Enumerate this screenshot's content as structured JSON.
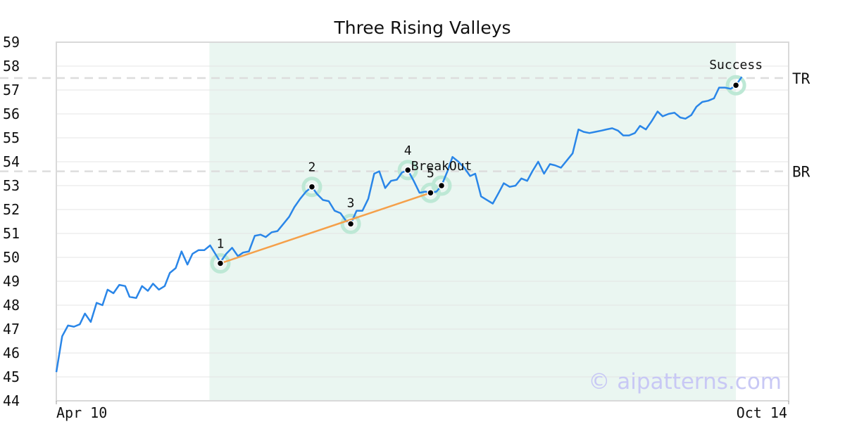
{
  "chart_data": {
    "type": "line",
    "title": "Three Rising Valleys",
    "watermark": "© aipatterns.com",
    "ylim": [
      44,
      59
    ],
    "yticks": [
      44,
      45,
      46,
      47,
      48,
      49,
      50,
      51,
      52,
      53,
      54,
      55,
      56,
      57,
      58,
      59
    ],
    "xlim": [
      0,
      1
    ],
    "xtick_labels": [
      {
        "x": 0.0,
        "label": "Apr 10"
      },
      {
        "x": 1.0,
        "label": "Oct 14"
      }
    ],
    "grid": true,
    "colors": {
      "price_line": "#2a86e8",
      "trend_line": "#f5a04a",
      "highlight_fill": "#eaf6f1",
      "marker_halo": "#bde8d5",
      "reference_line": "#dddddd",
      "watermark": "#c8c8f5"
    },
    "highlight_region": {
      "x_start": 0.209,
      "x_end": 0.928
    },
    "price_series": [
      [
        0.0,
        45.2
      ],
      [
        0.008,
        46.7
      ],
      [
        0.016,
        47.15
      ],
      [
        0.024,
        47.1
      ],
      [
        0.032,
        47.2
      ],
      [
        0.039,
        47.65
      ],
      [
        0.047,
        47.3
      ],
      [
        0.055,
        48.1
      ],
      [
        0.063,
        48.0
      ],
      [
        0.07,
        48.65
      ],
      [
        0.078,
        48.5
      ],
      [
        0.086,
        48.85
      ],
      [
        0.094,
        48.8
      ],
      [
        0.1,
        48.35
      ],
      [
        0.109,
        48.3
      ],
      [
        0.117,
        48.8
      ],
      [
        0.125,
        48.6
      ],
      [
        0.132,
        48.9
      ],
      [
        0.14,
        48.65
      ],
      [
        0.148,
        48.8
      ],
      [
        0.155,
        49.35
      ],
      [
        0.163,
        49.55
      ],
      [
        0.171,
        50.25
      ],
      [
        0.179,
        49.7
      ],
      [
        0.186,
        50.15
      ],
      [
        0.194,
        50.3
      ],
      [
        0.202,
        50.3
      ],
      [
        0.21,
        50.5
      ],
      [
        0.217,
        50.15
      ],
      [
        0.224,
        49.8
      ],
      [
        0.232,
        50.15
      ],
      [
        0.24,
        50.4
      ],
      [
        0.248,
        50.05
      ],
      [
        0.255,
        50.2
      ],
      [
        0.263,
        50.25
      ],
      [
        0.271,
        50.9
      ],
      [
        0.279,
        50.95
      ],
      [
        0.286,
        50.85
      ],
      [
        0.294,
        51.05
      ],
      [
        0.302,
        51.1
      ],
      [
        0.31,
        51.4
      ],
      [
        0.318,
        51.7
      ],
      [
        0.325,
        52.1
      ],
      [
        0.333,
        52.45
      ],
      [
        0.341,
        52.75
      ],
      [
        0.349,
        52.95
      ],
      [
        0.356,
        52.65
      ],
      [
        0.364,
        52.4
      ],
      [
        0.372,
        52.35
      ],
      [
        0.38,
        51.95
      ],
      [
        0.388,
        51.85
      ],
      [
        0.395,
        51.55
      ],
      [
        0.402,
        51.4
      ],
      [
        0.41,
        51.95
      ],
      [
        0.418,
        51.95
      ],
      [
        0.426,
        52.45
      ],
      [
        0.434,
        53.5
      ],
      [
        0.441,
        53.6
      ],
      [
        0.449,
        52.9
      ],
      [
        0.457,
        53.2
      ],
      [
        0.465,
        53.25
      ],
      [
        0.472,
        53.55
      ],
      [
        0.48,
        53.65
      ],
      [
        0.488,
        53.2
      ],
      [
        0.496,
        52.7
      ],
      [
        0.504,
        52.75
      ],
      [
        0.511,
        52.7
      ],
      [
        0.519,
        52.75
      ],
      [
        0.526,
        53.0
      ],
      [
        0.534,
        53.6
      ],
      [
        0.541,
        54.2
      ],
      [
        0.549,
        54.0
      ],
      [
        0.557,
        53.75
      ],
      [
        0.565,
        53.4
      ],
      [
        0.572,
        53.5
      ],
      [
        0.58,
        52.55
      ],
      [
        0.588,
        52.4
      ],
      [
        0.596,
        52.25
      ],
      [
        0.604,
        52.7
      ],
      [
        0.611,
        53.1
      ],
      [
        0.619,
        52.95
      ],
      [
        0.627,
        53.0
      ],
      [
        0.635,
        53.3
      ],
      [
        0.643,
        53.2
      ],
      [
        0.65,
        53.6
      ],
      [
        0.658,
        54.0
      ],
      [
        0.666,
        53.5
      ],
      [
        0.674,
        53.9
      ],
      [
        0.681,
        53.85
      ],
      [
        0.689,
        53.75
      ],
      [
        0.697,
        54.05
      ],
      [
        0.705,
        54.35
      ],
      [
        0.713,
        55.35
      ],
      [
        0.72,
        55.25
      ],
      [
        0.728,
        55.2
      ],
      [
        0.736,
        55.25
      ],
      [
        0.744,
        55.3
      ],
      [
        0.751,
        55.35
      ],
      [
        0.759,
        55.4
      ],
      [
        0.767,
        55.3
      ],
      [
        0.774,
        55.1
      ],
      [
        0.782,
        55.1
      ],
      [
        0.79,
        55.2
      ],
      [
        0.797,
        55.5
      ],
      [
        0.805,
        55.35
      ],
      [
        0.813,
        55.7
      ],
      [
        0.821,
        56.1
      ],
      [
        0.828,
        55.9
      ],
      [
        0.836,
        56.0
      ],
      [
        0.844,
        56.05
      ],
      [
        0.852,
        55.85
      ],
      [
        0.859,
        55.8
      ],
      [
        0.867,
        55.95
      ],
      [
        0.874,
        56.3
      ],
      [
        0.882,
        56.5
      ],
      [
        0.89,
        56.55
      ],
      [
        0.898,
        56.65
      ],
      [
        0.905,
        57.1
      ],
      [
        0.913,
        57.1
      ],
      [
        0.921,
        57.05
      ],
      [
        0.928,
        57.2
      ],
      [
        0.936,
        57.55
      ]
    ],
    "trend_line": [
      [
        0.224,
        49.75
      ],
      [
        0.511,
        52.7
      ]
    ],
    "reference_lines": [
      {
        "label": "TR",
        "y": 57.5
      },
      {
        "label": "BR",
        "y": 53.6
      }
    ],
    "markers": [
      {
        "label": "1",
        "x": 0.224,
        "y": 49.75
      },
      {
        "label": "2",
        "x": 0.349,
        "y": 52.95
      },
      {
        "label": "3",
        "x": 0.402,
        "y": 51.4
      },
      {
        "label": "4",
        "x": 0.48,
        "y": 53.65
      },
      {
        "label": "5",
        "x": 0.511,
        "y": 52.7
      },
      {
        "label": "BreakOut",
        "x": 0.526,
        "y": 53.0
      },
      {
        "label": "Success",
        "x": 0.928,
        "y": 57.2
      }
    ]
  }
}
